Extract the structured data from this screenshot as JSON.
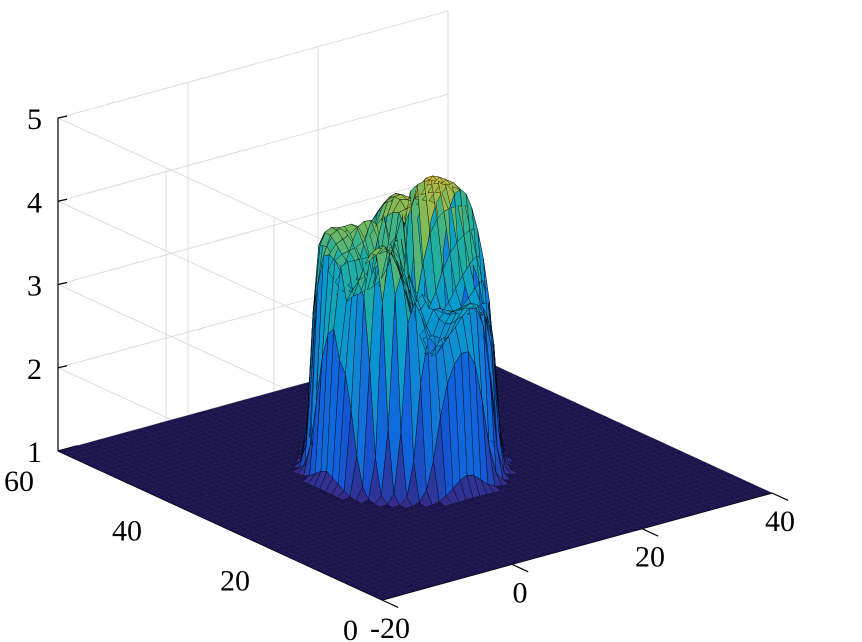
{
  "chart_data": {
    "type": "surface",
    "title": "",
    "xlabel": "",
    "ylabel": "",
    "zlabel": "",
    "xlim": [
      -20,
      40
    ],
    "ylim": [
      0,
      60
    ],
    "zlim": [
      1,
      5
    ],
    "grid": true,
    "colormap": "parula",
    "x_ticks": [
      {
        "label": "-20"
      },
      {
        "label": "0"
      },
      {
        "label": "20"
      },
      {
        "label": "40"
      }
    ],
    "y_ticks": [
      {
        "label": "0"
      },
      {
        "label": "20"
      },
      {
        "label": "40"
      },
      {
        "label": "60"
      }
    ],
    "z_ticks": [
      {
        "label": "1"
      },
      {
        "label": "2"
      },
      {
        "label": "3"
      },
      {
        "label": "4"
      },
      {
        "label": "5"
      }
    ],
    "surface": {
      "baseline_z": 1,
      "column_center_x": 10,
      "column_center_y": 32,
      "column_radius": 11,
      "rim_height_range": [
        3.6,
        4.6
      ],
      "peak_z": 4.6
    }
  },
  "colors": {
    "base_plane": "#1b1451",
    "colormap_low": "#352a87",
    "colormap_mid": "#21a2aa",
    "colormap_high": "#f9fb0e"
  }
}
